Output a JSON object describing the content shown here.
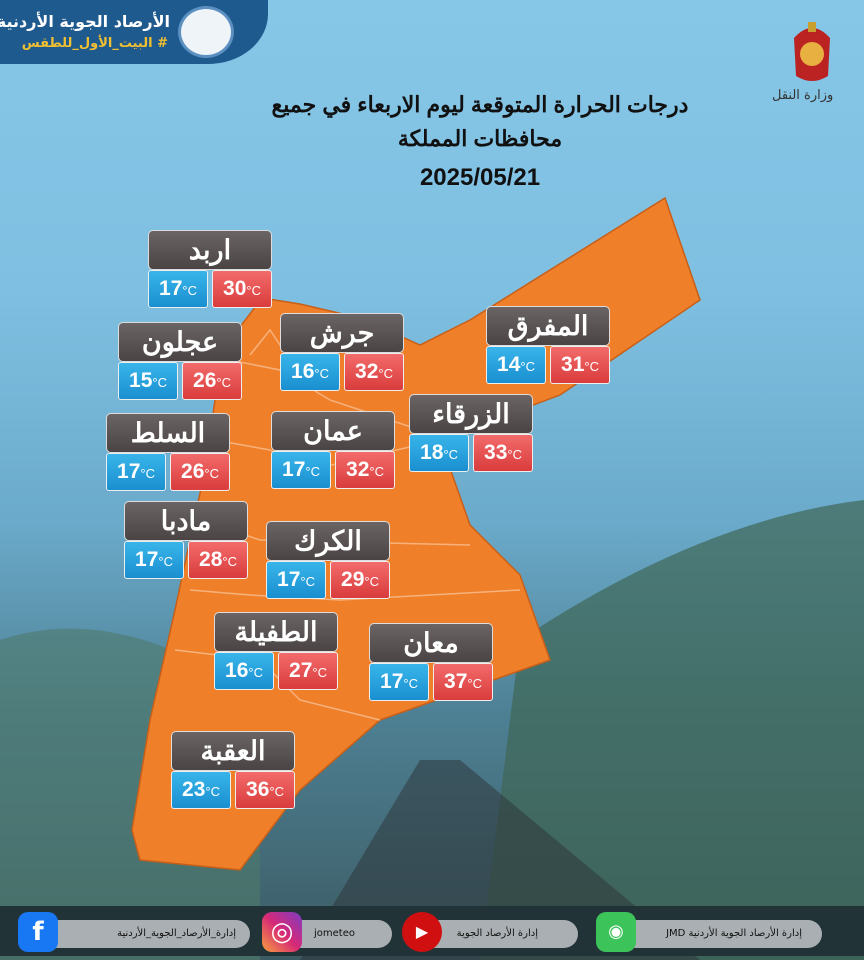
{
  "brand": {
    "name": "الأرصاد الجوية الأردنية",
    "hashtag": "# البيت_الأول_للطقس"
  },
  "ministry": "وزارة النقل",
  "title": "درجات الحرارة المتوقعة ليوم الاربعاء في جميع محافظات المملكة",
  "date": "2025/05/21",
  "unit": "°C",
  "colors": {
    "map": "#f07f2a",
    "min": "#1e9ad8",
    "max": "#e34848",
    "header": "#555050"
  },
  "governorates": [
    {
      "name": "اربد",
      "min": "17",
      "max": "30"
    },
    {
      "name": "عجلون",
      "min": "15",
      "max": "26"
    },
    {
      "name": "جرش",
      "min": "16",
      "max": "32"
    },
    {
      "name": "المفرق",
      "min": "14",
      "max": "31"
    },
    {
      "name": "السلط",
      "min": "17",
      "max": "26"
    },
    {
      "name": "عمان",
      "min": "17",
      "max": "32"
    },
    {
      "name": "الزرقاء",
      "min": "18",
      "max": "33"
    },
    {
      "name": "مادبا",
      "min": "17",
      "max": "28"
    },
    {
      "name": "الكرك",
      "min": "17",
      "max": "29"
    },
    {
      "name": "الطفيلة",
      "min": "16",
      "max": "27"
    },
    {
      "name": "معان",
      "min": "17",
      "max": "37"
    },
    {
      "name": "العقبة",
      "min": "23",
      "max": "36"
    }
  ],
  "footer": [
    {
      "icon": "facebook-icon",
      "label": "إدارة_الأرصاد_الجوية_الأردنية"
    },
    {
      "icon": "instagram-icon",
      "label": "jometeo"
    },
    {
      "icon": "youtube-icon",
      "label": "إدارة الأرصاد الجوية"
    },
    {
      "icon": "whatsapp-icon",
      "label": "إدارة الأرصاد الجوية الأردنية JMD"
    }
  ]
}
